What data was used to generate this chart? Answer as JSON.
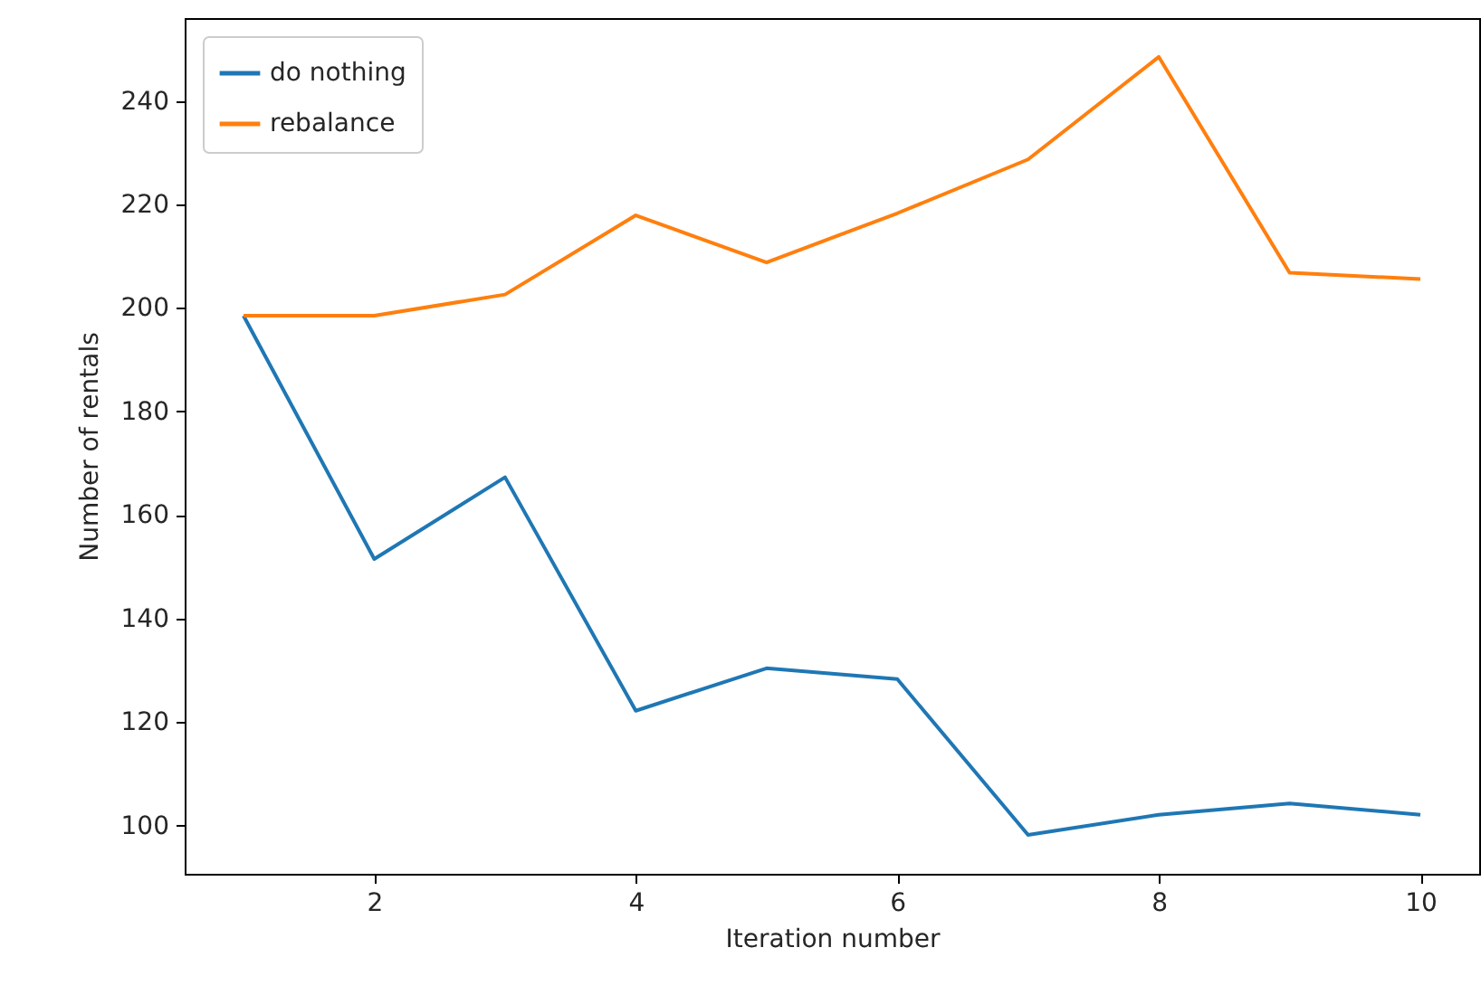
{
  "chart_data": {
    "type": "line",
    "xlabel": "Iteration number",
    "ylabel": "Number of rentals",
    "x": [
      1,
      2,
      3,
      4,
      5,
      6,
      7,
      8,
      9,
      10
    ],
    "series": [
      {
        "name": "do nothing",
        "color": "#1f77b4",
        "values": [
          198.5,
          151.5,
          167.3,
          122.2,
          130.4,
          128.3,
          98.2,
          102.1,
          104.3,
          102.1
        ]
      },
      {
        "name": "rebalance",
        "color": "#ff7f0e",
        "values": [
          198.5,
          198.5,
          202.6,
          217.9,
          208.8,
          218.3,
          228.7,
          248.5,
          206.8,
          205.6
        ]
      }
    ],
    "xlim": [
      0.55,
      10.45
    ],
    "xticks": [
      2,
      4,
      6,
      8,
      10
    ],
    "ylim": [
      90.7,
      256
    ],
    "yticks": [
      100,
      120,
      140,
      160,
      180,
      200,
      220,
      240
    ],
    "grid": false,
    "legend": "top left",
    "marker": "none",
    "line_style": "solid"
  }
}
